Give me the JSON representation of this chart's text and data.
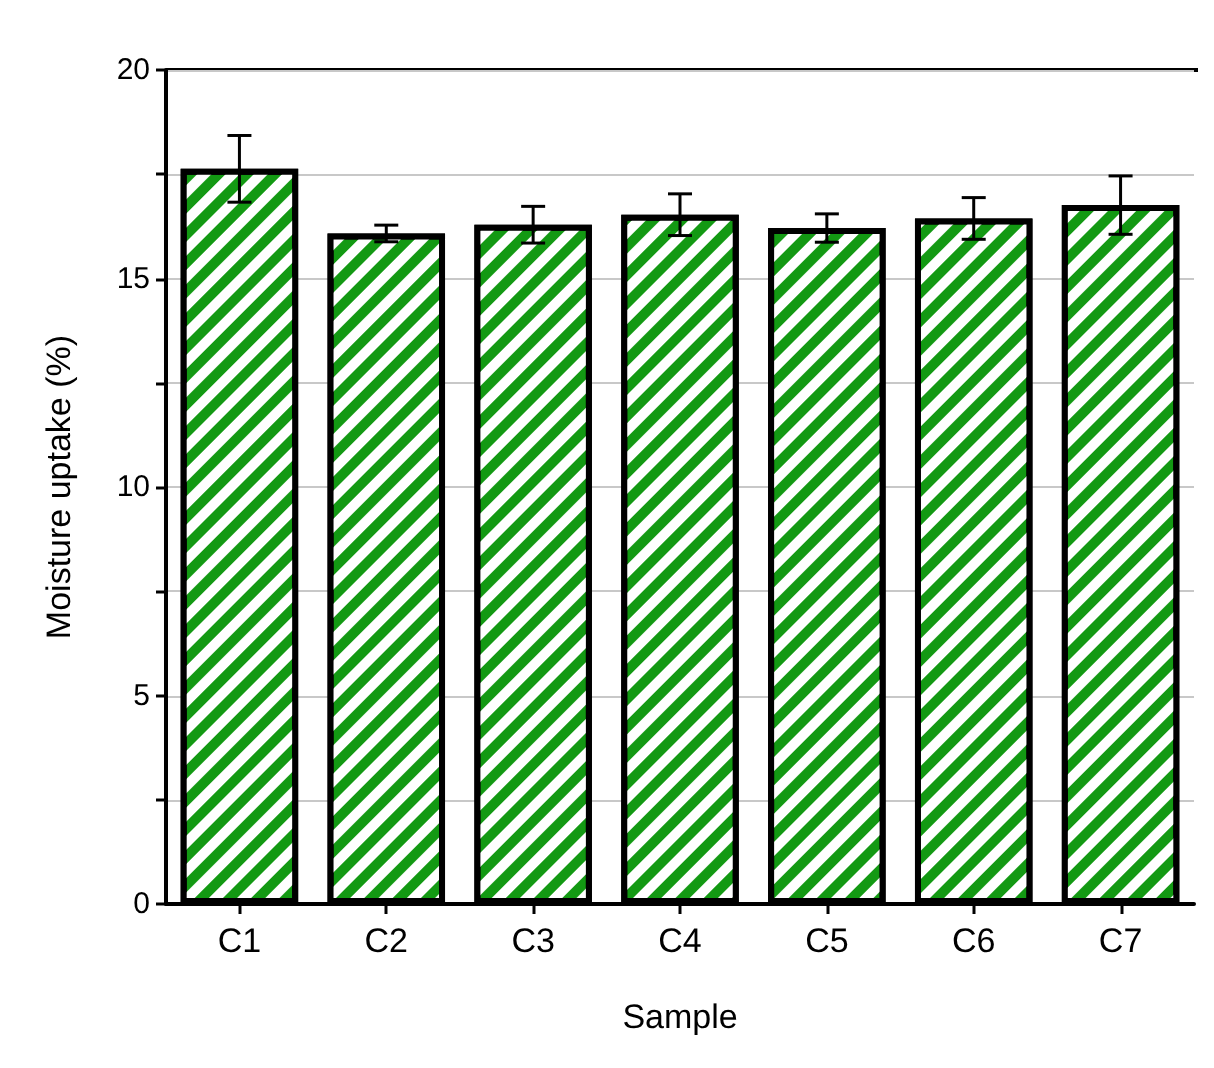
{
  "chart_data": {
    "type": "bar",
    "xlabel": "Sample",
    "ylabel": "Moisture uptake (%)",
    "categories": [
      "C1",
      "C2",
      "C3",
      "C4",
      "C5",
      "C6",
      "C7"
    ],
    "values": [
      17.63,
      16.08,
      16.29,
      16.53,
      16.21,
      16.44,
      16.76
    ],
    "errors": [
      0.8,
      0.2,
      0.44,
      0.5,
      0.34,
      0.5,
      0.7
    ],
    "color": "#139913",
    "ylim": [
      0,
      20
    ],
    "yticks": [
      0,
      {
        "value": 2.5,
        "label": null
      },
      5,
      {
        "value": 7.5,
        "label": null
      },
      10,
      {
        "value": 12.5,
        "label": null
      },
      15,
      {
        "value": 17.5,
        "label": null
      },
      20
    ],
    "grid": "y"
  }
}
